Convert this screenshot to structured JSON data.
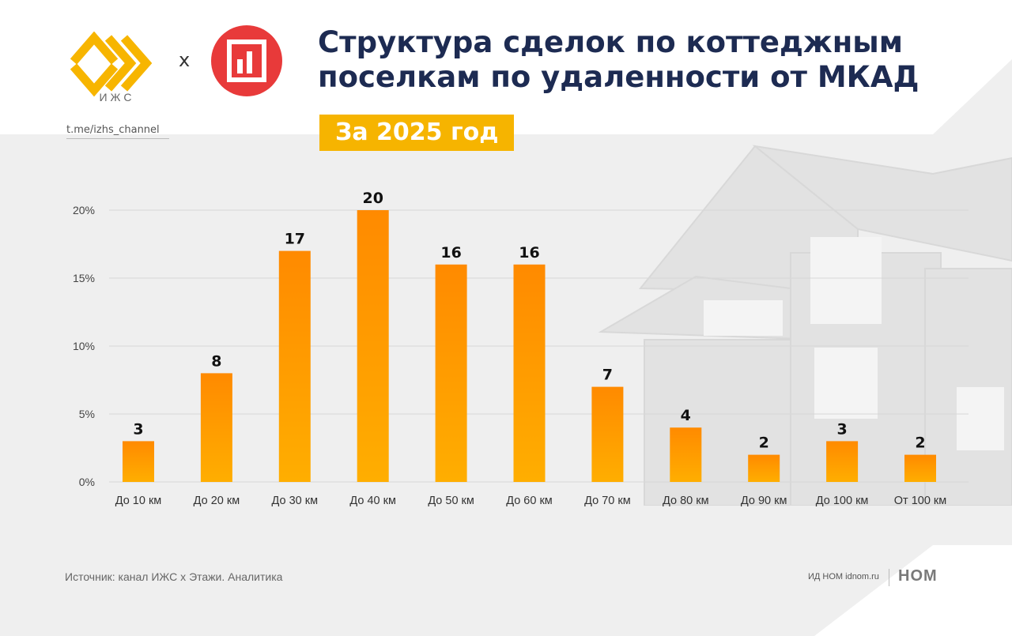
{
  "header": {
    "title_line1": "Структура сделок по коттеджным",
    "title_line2": "поселкам по удаленности от МКАД",
    "period": "За 2025 год",
    "channel": "t.me/izhs_channel",
    "logo_izhs_caption": "И Ж С",
    "logo_separator": "x"
  },
  "footer": {
    "source": "Источник: канал ИЖС x Этажи. Аналитика",
    "publisher": "ИД НОМ idnom.ru",
    "publisher_logo": "НОМ"
  },
  "colors": {
    "bar_light": "#ffae00",
    "bar_dark": "#ff8a00",
    "title": "#1d2b52",
    "period_badge": "#f6b400",
    "etazhi_logo": "#e83a3a"
  },
  "chart_data": {
    "type": "bar",
    "categories": [
      "До 10 км",
      "До 20 км",
      "До 30 км",
      "До 40 км",
      "До 50 км",
      "До 60 км",
      "До 70 км",
      "До 80 км",
      "До 90 км",
      "До 100 км",
      "От 100 км"
    ],
    "values": [
      3,
      8,
      17,
      20,
      16,
      16,
      7,
      4,
      2,
      3,
      2
    ],
    "ylim": [
      0,
      20
    ],
    "yticks": [
      "0%",
      "5%",
      "10%",
      "15%",
      "20%"
    ],
    "ytick_values": [
      0,
      5,
      10,
      15,
      20
    ],
    "grid": true,
    "data_labels": true
  }
}
